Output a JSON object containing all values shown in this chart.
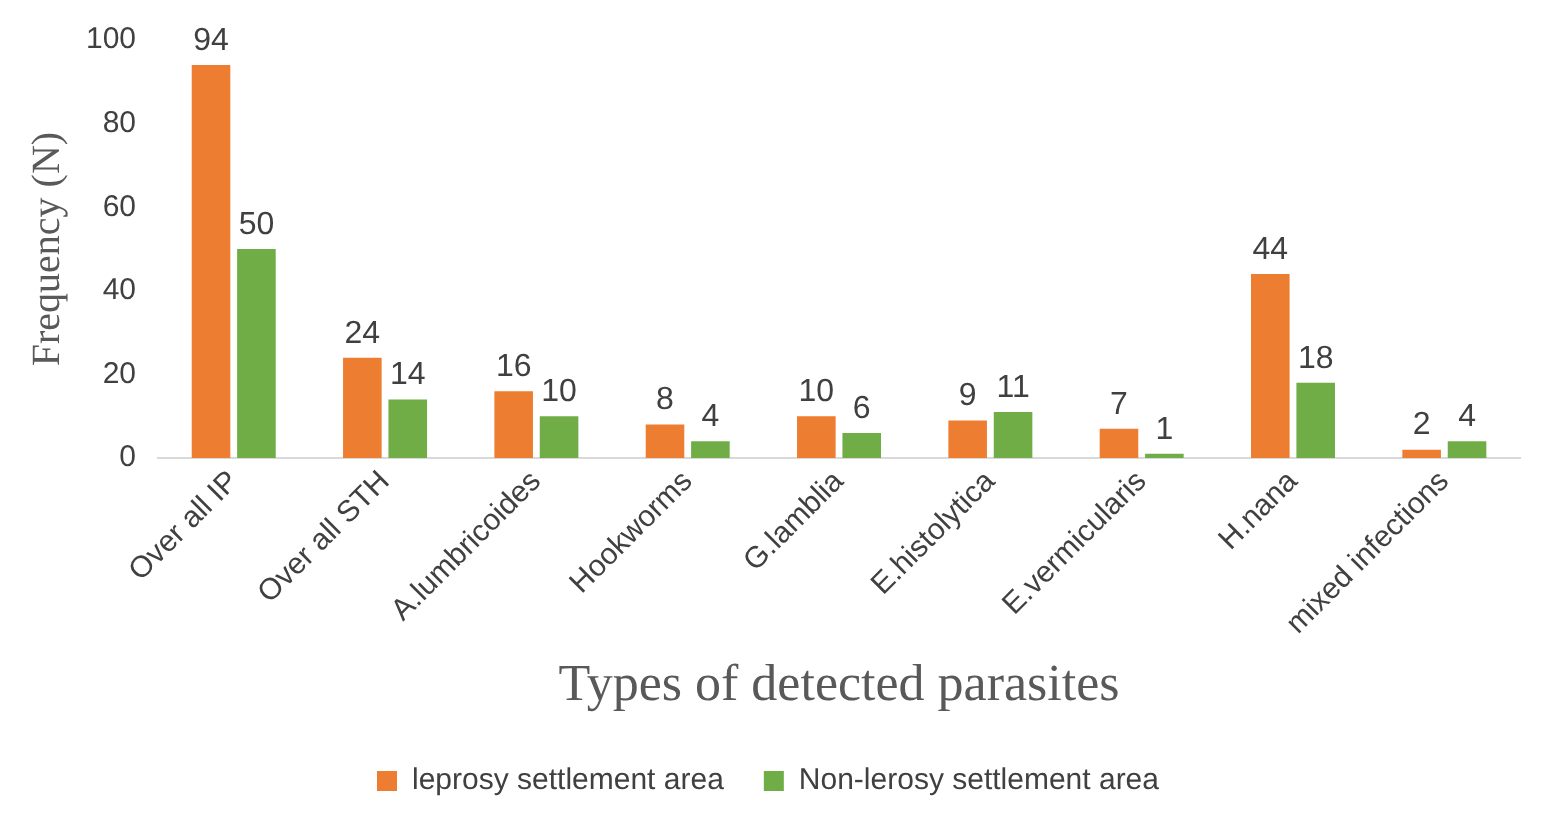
{
  "chart_data": {
    "type": "bar",
    "xlabel": "Types of detected parasites",
    "ylabel": "Frequency (N)",
    "categories": [
      "Over all IP",
      "Over all STH",
      "A.lumbricoides",
      "Hookworms",
      "G.lamblia",
      "E.histolytica",
      "E.vermicularis",
      "H.nana",
      "mixed infections"
    ],
    "series": [
      {
        "name": "leprosy settlement area",
        "color": "#ed7d31",
        "values": [
          94,
          24,
          16,
          8,
          10,
          9,
          7,
          44,
          2
        ]
      },
      {
        "name": "Non-lerosy settlement area",
        "color": "#70ad47",
        "values": [
          50,
          14,
          10,
          4,
          6,
          11,
          1,
          18,
          4
        ]
      }
    ],
    "ylim": [
      0,
      100
    ],
    "yticks": [
      0,
      20,
      40,
      60,
      80,
      100
    ],
    "grid": false,
    "legend": "bottom",
    "data_labels": true
  }
}
